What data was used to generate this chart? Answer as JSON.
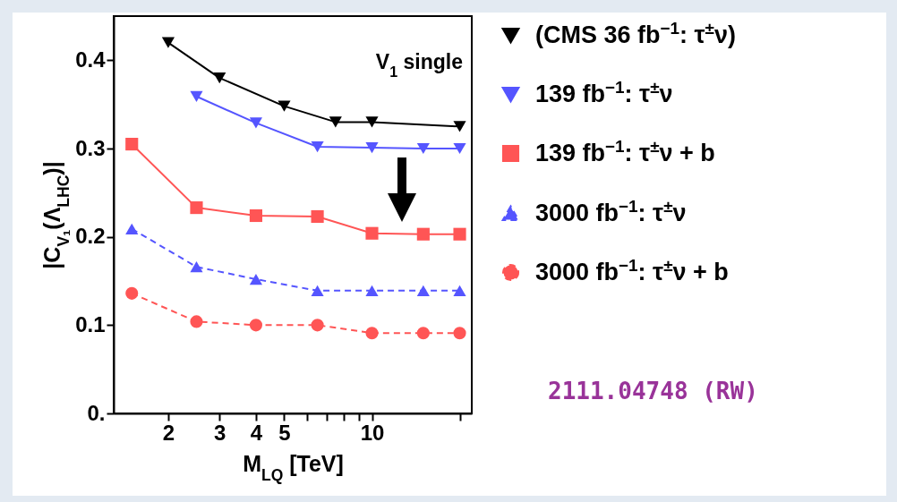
{
  "chart_data": {
    "type": "line",
    "xlabel": "M$_{LQ}$ [TeV]",
    "ylabel": "|C$_{V₁}$(Λ$_{LHC}$)|",
    "annotations": [
      "V$_{1}$ single",
      "2111.04748 (RW)"
    ],
    "x": [
      1.5,
      2.5,
      4,
      6.5,
      10,
      15,
      20
    ],
    "series": [
      {
        "name": "(CMS 36 fb$^{−1}$: τ$^{±}$ν)",
        "color": "#000000",
        "marker": "triangle-down",
        "line_style": "solid",
        "x": [
          2,
          3,
          5,
          7.5,
          10,
          20
        ],
        "values": [
          0.42,
          0.38,
          0.348,
          0.33,
          0.33,
          0.325
        ]
      },
      {
        "name": "  139 fb$^{−1}$: τ$^{±}$ν",
        "color": "#5555ff",
        "marker": "triangle-down",
        "line_style": "solid",
        "values": [
          null,
          0.359,
          0.329,
          0.302,
          0.301,
          0.3,
          0.3
        ]
      },
      {
        "name": "  139 fb$^{−1}$: τ$^{±}$ν + b",
        "color": "#ff5555",
        "marker": "square",
        "line_style": "solid",
        "values": [
          0.305,
          0.233,
          0.224,
          0.223,
          0.204,
          0.203,
          0.203
        ]
      },
      {
        "name": "3000 fb$^{−1}$: τ$^{±}$ν",
        "color": "#5555ff",
        "marker": "triangle",
        "line_style": "dashed",
        "values": [
          0.209,
          0.166,
          0.152,
          0.139,
          0.139,
          0.139,
          0.139
        ]
      },
      {
        "name": "3000 fb$^{−1}$: τ$^{±}$ν + b",
        "color": "#ff5555",
        "marker": "circle",
        "line_style": "dashed",
        "values": [
          0.136,
          0.104,
          0.1,
          0.1,
          0.091,
          0.091,
          0.091
        ]
      }
    ],
    "log": "x",
    "xlim": [
      1.3,
      22
    ],
    "xticks": [
      2,
      3,
      4,
      5,
      {
        "value": 6,
        "label": null
      },
      {
        "value": 7,
        "label": null
      },
      {
        "value": 8,
        "label": null
      },
      {
        "value": 9,
        "label": null
      },
      10,
      {
        "value": 20,
        "label": null
      }
    ],
    "ylim": [
      0,
      0.45
    ],
    "yticks": [
      {
        "value": 0,
        "label": "0."
      },
      0.1,
      0.2,
      0.3,
      0.4
    ],
    "grid": false,
    "legend": "right"
  }
}
